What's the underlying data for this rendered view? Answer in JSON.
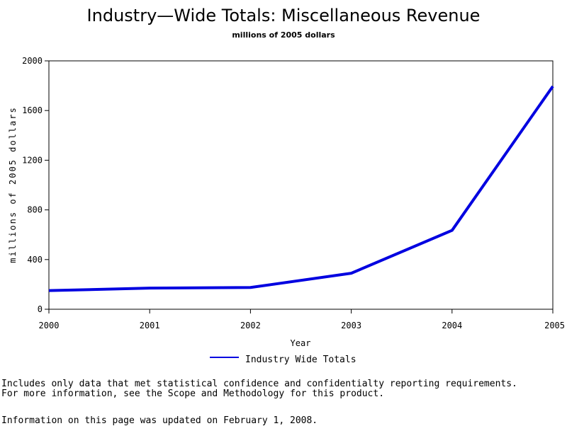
{
  "chart_data": {
    "type": "line",
    "title": "Industry—Wide Totals: Miscellaneous Revenue",
    "subtitle": "millions of 2005 dollars",
    "xlabel": "Year",
    "ylabel": "millions of 2005 dollars",
    "x": [
      "2000",
      "2001",
      "2002",
      "2003",
      "2004",
      "2005"
    ],
    "yticks": [
      0,
      400,
      800,
      1200,
      1600,
      2000
    ],
    "ylim": [
      0,
      2000
    ],
    "series": [
      {
        "name": "Industry Wide Totals",
        "values": [
          150,
          170,
          175,
          290,
          635,
          1795
        ],
        "color": "#0000e0"
      }
    ],
    "legend_position": "bottom",
    "grid": false
  },
  "notes": {
    "line1": "Includes only data that met statistical confidence and confidentialty reporting requirements.",
    "line2": "For more information, see the Scope and Methodology for this product.",
    "updated": "Information on this page was updated on February 1, 2008."
  }
}
